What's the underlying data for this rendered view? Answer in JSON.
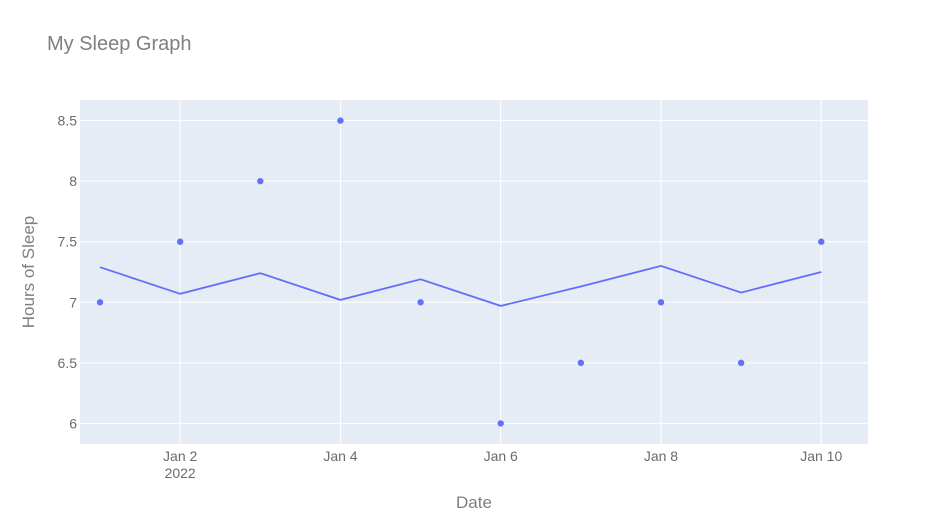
{
  "chart_data": {
    "type": "scatter",
    "title": "My Sleep Graph",
    "xlabel": "Date",
    "ylabel": "Hours of Sleep",
    "x_ticks": [
      {
        "date": "2022-01-02",
        "label": "Jan 2",
        "sublabel": "2022"
      },
      {
        "date": "2022-01-04",
        "label": "Jan 4",
        "sublabel": ""
      },
      {
        "date": "2022-01-06",
        "label": "Jan 6",
        "sublabel": ""
      },
      {
        "date": "2022-01-08",
        "label": "Jan 8",
        "sublabel": ""
      },
      {
        "date": "2022-01-10",
        "label": "Jan 10",
        "sublabel": ""
      }
    ],
    "y_ticks": [
      6,
      6.5,
      7,
      7.5,
      8,
      8.5
    ],
    "y_tick_labels": [
      "6",
      "6.5",
      "7",
      "7.5",
      "8",
      "8.5"
    ],
    "xlim": [
      "2021-12-31T18:00:00",
      "2022-01-10T14:00:00"
    ],
    "ylim": [
      5.83,
      8.67
    ],
    "grid": true,
    "colors": {
      "plot_bg": "#e5ecf6",
      "grid": "#ffffff",
      "marker": "#636efa",
      "line": "#636efa"
    },
    "series": [
      {
        "mode": "markers",
        "x": [
          "2022-01-01",
          "2022-01-02",
          "2022-01-03",
          "2022-01-04",
          "2022-01-05",
          "2022-01-06",
          "2022-01-07",
          "2022-01-08",
          "2022-01-09",
          "2022-01-10"
        ],
        "y": [
          7,
          7.5,
          8,
          8.5,
          7,
          6,
          6.5,
          7,
          6.5,
          7.5
        ]
      },
      {
        "mode": "lines",
        "x": [
          "2022-01-01",
          "2022-01-02",
          "2022-01-03",
          "2022-01-04",
          "2022-01-05",
          "2022-01-06",
          "2022-01-07",
          "2022-01-08",
          "2022-01-09",
          "2022-01-10"
        ],
        "y": [
          7.29,
          7.07,
          7.24,
          7.02,
          7.19,
          6.97,
          7.13,
          7.3,
          7.08,
          7.25
        ]
      }
    ]
  }
}
